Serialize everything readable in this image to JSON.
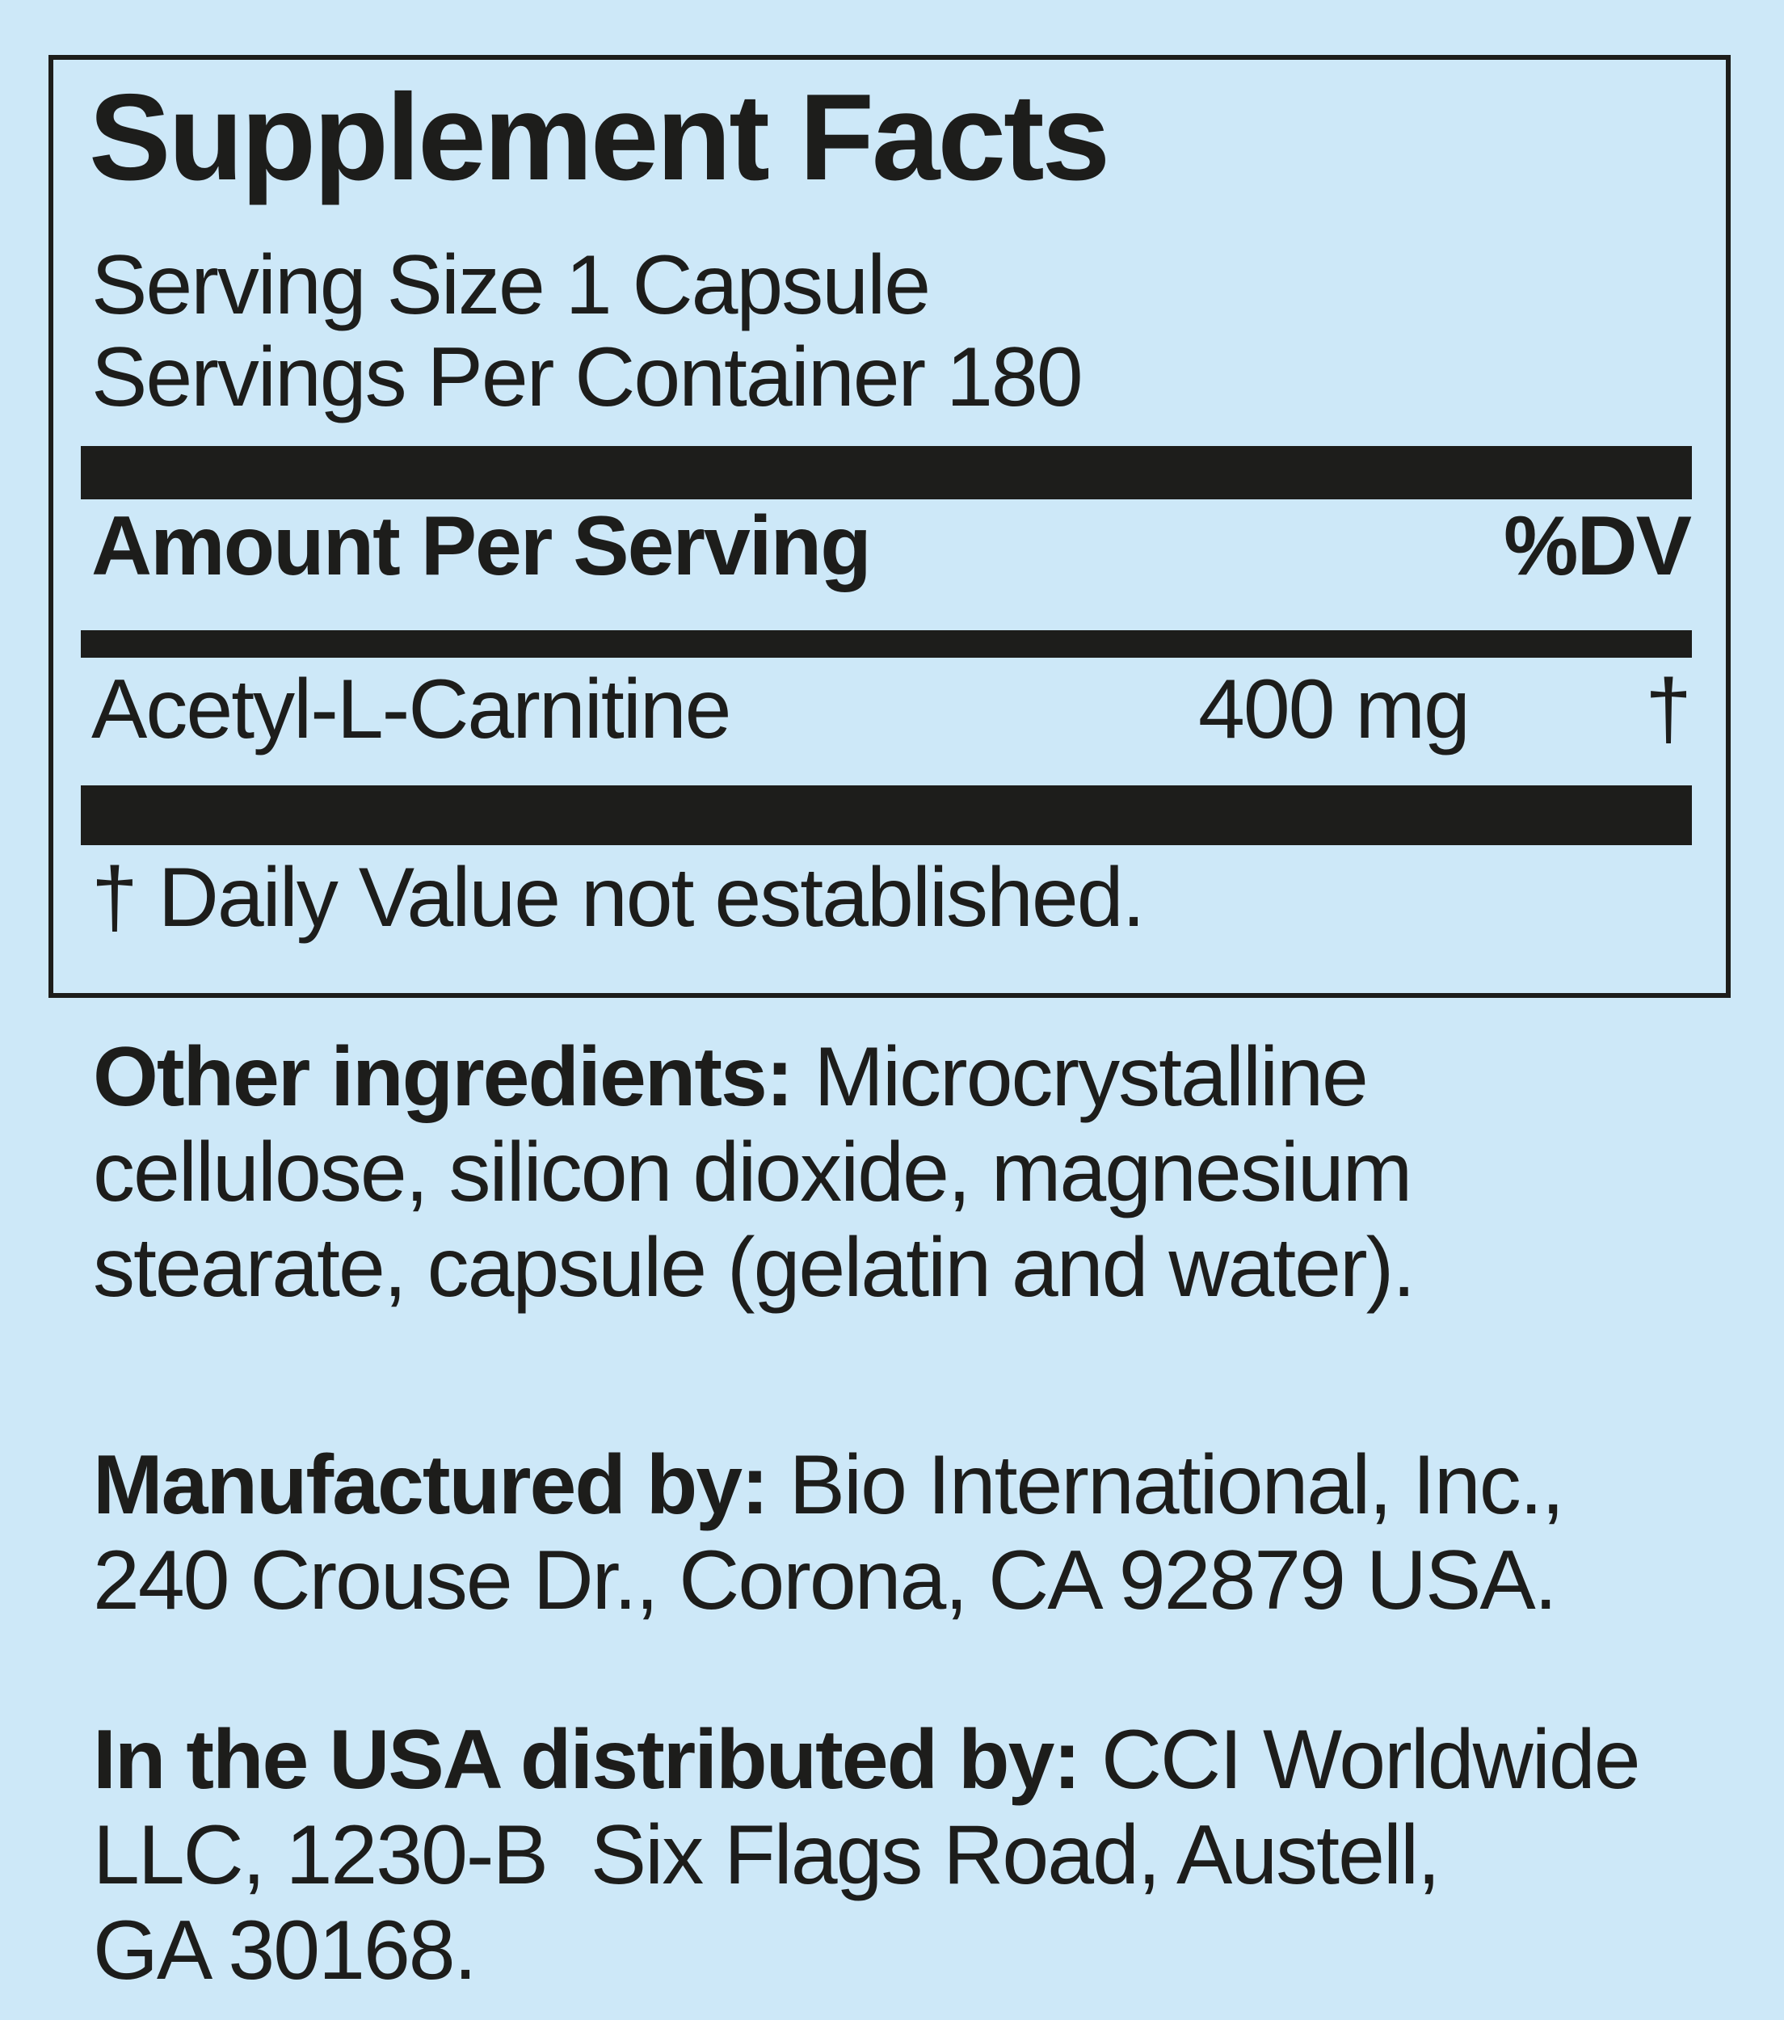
{
  "colors": {
    "background": "#cde8f8",
    "ink": "#1d1d1b"
  },
  "panel": {
    "title": "Supplement Facts",
    "serving_size": "Serving Size 1 Capsule",
    "servings_per_container": "Servings Per Container 180",
    "columns": {
      "amount_per_serving": "Amount Per Serving",
      "percent_dv": "%DV"
    },
    "rows": [
      {
        "name": "Acetyl-L-Carnitine",
        "amount": "400 mg",
        "dv": "†"
      }
    ],
    "footnote": "† Daily Value not established."
  },
  "other_ingredients": {
    "label": "Other ingredients:",
    "line1_rest": " Microcrystalline",
    "line2": "cellulose, silicon dioxide, magnesium",
    "line3": "stearate, capsule (gelatin and water)."
  },
  "manufactured": {
    "label": "Manufactured by:",
    "line1_rest": " Bio International, Inc.,",
    "line2": "240 Crouse Dr., Corona, CA 92879 USA."
  },
  "distributed": {
    "label": "In the USA distributed by:",
    "line1_rest": " CCI Worldwide",
    "line2": "LLC, 1230-B  Six Flags Road, Austell,",
    "line3": "GA 30168."
  }
}
